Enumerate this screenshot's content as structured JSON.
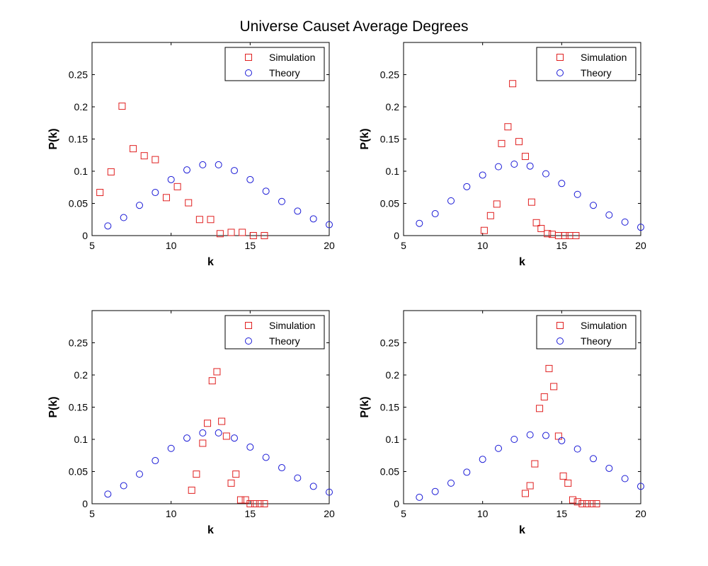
{
  "figure": {
    "title": "Universe Causet Average Degrees"
  },
  "colors": {
    "simulation": "#e02020",
    "theory": "#1a1ad6",
    "axis": "#000000",
    "background": "#ffffff"
  },
  "chart_data": [
    {
      "type": "scatter",
      "xlabel": "k",
      "ylabel": "P(k)",
      "xlim": [
        5,
        20
      ],
      "ylim": [
        0,
        0.3
      ],
      "xticks": [
        "5",
        "10",
        "15",
        "20"
      ],
      "yticks": [
        "0",
        "0.05",
        "0.1",
        "0.15",
        "0.2",
        "0.25"
      ],
      "legend_position": "top-right",
      "grid": false,
      "series": [
        {
          "name": "Simulation",
          "marker": "square",
          "x": [
            5.5,
            6.2,
            6.9,
            7.6,
            8.3,
            9.0,
            9.7,
            10.4,
            11.1,
            11.8,
            12.5,
            13.1,
            13.8,
            14.5,
            15.2,
            15.9
          ],
          "y": [
            0.067,
            0.099,
            0.201,
            0.135,
            0.124,
            0.118,
            0.059,
            0.076,
            0.051,
            0.025,
            0.025,
            0.003,
            0.005,
            0.005,
            0.0,
            0.0
          ]
        },
        {
          "name": "Theory",
          "marker": "circle",
          "x": [
            6,
            7,
            8,
            9,
            10,
            11,
            12,
            13,
            14,
            15,
            16,
            17,
            18,
            19,
            20
          ],
          "y": [
            0.015,
            0.028,
            0.047,
            0.067,
            0.087,
            0.102,
            0.11,
            0.11,
            0.101,
            0.087,
            0.069,
            0.053,
            0.038,
            0.026,
            0.017
          ]
        }
      ]
    },
    {
      "type": "scatter",
      "xlabel": "k",
      "ylabel": "P(k)",
      "xlim": [
        5,
        20
      ],
      "ylim": [
        0,
        0.3
      ],
      "xticks": [
        "5",
        "10",
        "15",
        "20"
      ],
      "yticks": [
        "0",
        "0.05",
        "0.1",
        "0.15",
        "0.2",
        "0.25"
      ],
      "legend_position": "top-right",
      "grid": false,
      "series": [
        {
          "name": "Simulation",
          "marker": "square",
          "x": [
            10.1,
            10.5,
            10.9,
            11.2,
            11.6,
            11.9,
            12.3,
            12.7,
            13.1,
            13.4,
            13.7,
            14.1,
            14.4,
            14.8,
            15.2,
            15.5,
            15.9
          ],
          "y": [
            0.008,
            0.031,
            0.049,
            0.143,
            0.169,
            0.236,
            0.146,
            0.123,
            0.052,
            0.02,
            0.011,
            0.003,
            0.002,
            0.0,
            0.0,
            0.0,
            0.0
          ]
        },
        {
          "name": "Theory",
          "marker": "circle",
          "x": [
            6,
            7,
            8,
            9,
            10,
            11,
            12,
            13,
            14,
            15,
            16,
            17,
            18,
            19,
            20
          ],
          "y": [
            0.019,
            0.034,
            0.054,
            0.076,
            0.094,
            0.107,
            0.111,
            0.108,
            0.096,
            0.081,
            0.064,
            0.047,
            0.032,
            0.021,
            0.013
          ]
        }
      ]
    },
    {
      "type": "scatter",
      "xlabel": "k",
      "ylabel": "P(k)",
      "xlim": [
        5,
        20
      ],
      "ylim": [
        0,
        0.3
      ],
      "xticks": [
        "5",
        "10",
        "15",
        "20"
      ],
      "yticks": [
        "0",
        "0.05",
        "0.1",
        "0.15",
        "0.2",
        "0.25"
      ],
      "legend_position": "top-right",
      "grid": false,
      "series": [
        {
          "name": "Simulation",
          "marker": "square",
          "x": [
            11.3,
            11.6,
            12.0,
            12.3,
            12.6,
            12.9,
            13.2,
            13.5,
            13.8,
            14.1,
            14.4,
            14.7,
            15.0,
            15.3,
            15.6,
            15.9
          ],
          "y": [
            0.021,
            0.046,
            0.094,
            0.125,
            0.191,
            0.205,
            0.128,
            0.105,
            0.032,
            0.046,
            0.006,
            0.006,
            0.0,
            0.0,
            0.0,
            0.0
          ]
        },
        {
          "name": "Theory",
          "marker": "circle",
          "x": [
            6,
            7,
            8,
            9,
            10,
            11,
            12,
            13,
            14,
            15,
            16,
            17,
            18,
            19,
            20
          ],
          "y": [
            0.015,
            0.028,
            0.046,
            0.067,
            0.086,
            0.102,
            0.11,
            0.11,
            0.102,
            0.088,
            0.072,
            0.056,
            0.04,
            0.027,
            0.018
          ]
        }
      ]
    },
    {
      "type": "scatter",
      "xlabel": "k",
      "ylabel": "P(k)",
      "xlim": [
        5,
        20
      ],
      "ylim": [
        0,
        0.3
      ],
      "xticks": [
        "5",
        "10",
        "15",
        "20"
      ],
      "yticks": [
        "0",
        "0.05",
        "0.1",
        "0.15",
        "0.2",
        "0.25"
      ],
      "legend_position": "top-right",
      "grid": false,
      "series": [
        {
          "name": "Simulation",
          "marker": "square",
          "x": [
            12.7,
            13.0,
            13.3,
            13.6,
            13.9,
            14.2,
            14.5,
            14.8,
            15.1,
            15.4,
            15.7,
            16.0,
            16.3,
            16.6,
            16.9,
            17.2
          ],
          "y": [
            0.016,
            0.028,
            0.062,
            0.148,
            0.166,
            0.21,
            0.182,
            0.105,
            0.043,
            0.032,
            0.006,
            0.003,
            0.0,
            0.0,
            0.0,
            0.0
          ]
        },
        {
          "name": "Theory",
          "marker": "circle",
          "x": [
            6,
            7,
            8,
            9,
            10,
            11,
            12,
            13,
            14,
            15,
            16,
            17,
            18,
            19,
            20
          ],
          "y": [
            0.01,
            0.019,
            0.032,
            0.049,
            0.069,
            0.086,
            0.1,
            0.107,
            0.106,
            0.098,
            0.085,
            0.07,
            0.055,
            0.039,
            0.027
          ]
        }
      ]
    }
  ]
}
